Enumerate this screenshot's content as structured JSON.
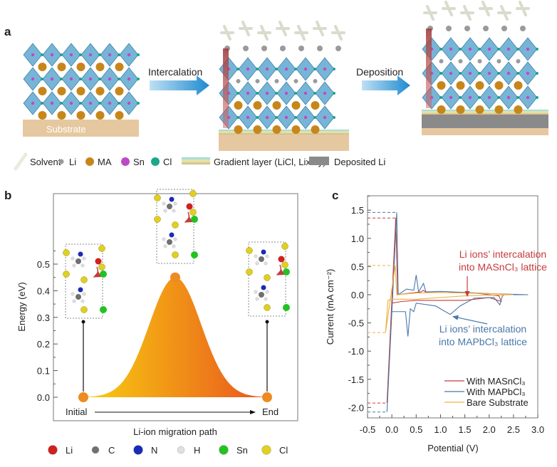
{
  "panel_a": {
    "label": "a",
    "substrate_label": "Substrate",
    "arrow1_label": "Intercalation",
    "arrow2_label": "Deposition",
    "legend": [
      {
        "label": "Solvent",
        "color": "#e8ece0"
      },
      {
        "label": "Li",
        "color": "#9a9a9a"
      },
      {
        "label": "MA",
        "color": "#c8861a"
      },
      {
        "label": "Sn",
        "color": "#c048c8"
      },
      {
        "label": "Cl",
        "color": "#1aa88a"
      },
      {
        "label": "Gradient layer (LiCl, LixMy)",
        "color": "#9fd8e0"
      },
      {
        "label": "Deposited Li",
        "color": "#8a8a8a"
      }
    ]
  },
  "chart_data": [
    {
      "panel": "b",
      "type": "area",
      "ylabel": "Energy (eV)",
      "xlabel": "Li-ion migration path",
      "ylim": [
        -0.08,
        0.6
      ],
      "yticks": [
        "0.0",
        "0.1",
        "0.2",
        "0.3",
        "0.4",
        "0.5"
      ],
      "points": [
        {
          "label": "Initial",
          "energy": 0.0
        },
        {
          "label": "",
          "energy": 0.45
        },
        {
          "label": "End",
          "energy": 0.0
        }
      ],
      "gradient_colors": [
        "#f8cf10",
        "#e9541e"
      ],
      "legend": [
        {
          "label": "Li",
          "color": "#d02020"
        },
        {
          "label": "C",
          "color": "#707070"
        },
        {
          "label": "N",
          "color": "#1a2ab8"
        },
        {
          "label": "H",
          "color": "#e0e0e0"
        },
        {
          "label": "Sn",
          "color": "#22c222"
        },
        {
          "label": "Cl",
          "color": "#e0d020"
        }
      ]
    },
    {
      "panel": "c",
      "type": "line",
      "xlabel": "Potential (V)",
      "ylabel": "Current (mA cm⁻²)",
      "xlim": [
        -0.5,
        3.0
      ],
      "ylim": [
        -2.25,
        1.75
      ],
      "xticks": [
        "-0.5",
        "0.0",
        "0.5",
        "1.0",
        "1.5",
        "2.0",
        "2.5",
        "3.0"
      ],
      "yticks": [
        "-2.0",
        "-1.5",
        "-1.0",
        "-0.5",
        "0.0",
        "0.5",
        "1.0",
        "1.5"
      ],
      "legend_position": "bottom-right",
      "series": [
        {
          "name": "With MASnCl₃",
          "color": "#c83a3a",
          "x": [
            -0.1,
            0.08,
            0.12,
            0.3,
            0.6,
            0.65,
            0.7,
            1.0,
            1.7,
            2.2,
            2.25,
            2.0,
            1.5,
            1.0,
            0.5,
            0.2,
            0.0,
            -0.1
          ],
          "y": [
            -1.92,
            1.36,
            0.0,
            0.02,
            0.05,
            0.08,
            0.04,
            0.04,
            0.03,
            -0.02,
            -0.12,
            -0.05,
            -0.1,
            -0.1,
            -0.1,
            -0.12,
            -0.15,
            -1.92
          ],
          "peak_markers": [
            1.36,
            -1.92
          ]
        },
        {
          "name": "With MAPbCl₃",
          "color": "#4a78a8",
          "x": [
            -0.1,
            0.1,
            0.13,
            0.3,
            0.45,
            0.5,
            0.55,
            0.65,
            0.7,
            1.0,
            1.5,
            2.0,
            2.8,
            2.3,
            2.27,
            2.22,
            2.1,
            1.7,
            1.4,
            1.2,
            0.9,
            0.5,
            0.45,
            0.38,
            0.33,
            0.28,
            0.0,
            -0.1
          ],
          "y": [
            -2.08,
            1.46,
            0.0,
            0.1,
            0.08,
            0.35,
            0.05,
            0.2,
            0.05,
            0.06,
            0.04,
            0.02,
            0.0,
            0.0,
            -0.03,
            -0.18,
            -0.05,
            -0.06,
            -0.2,
            -0.35,
            -0.2,
            -0.15,
            -0.3,
            -0.25,
            -0.74,
            -0.3,
            -0.3,
            -2.08
          ],
          "peak_markers": [
            1.46,
            -2.08
          ]
        },
        {
          "name": "Bare Substrate",
          "color": "#f0b040",
          "x": [
            -0.13,
            0.07,
            0.1,
            0.5,
            1.0,
            2.0,
            2.5,
            1.5,
            1.0,
            0.5,
            0.0,
            -0.08,
            -0.13
          ],
          "y": [
            -0.67,
            0.52,
            0.0,
            0.03,
            0.04,
            0.02,
            0.0,
            -0.02,
            -0.05,
            -0.08,
            -0.08,
            -0.1,
            -0.67
          ],
          "peak_markers": [
            0.52,
            -0.67
          ]
        }
      ],
      "annotations": [
        {
          "text": [
            "Li ions’ intercalation",
            "into MASnCl₃ lattice"
          ],
          "color": "#c83a3a",
          "x": 1.55,
          "y": -0.05
        },
        {
          "text": [
            "Li ions’ intercalation",
            "into MAPbCl₃ lattice"
          ],
          "color": "#4a78a8",
          "x": 1.2,
          "y": -0.35
        }
      ]
    }
  ]
}
